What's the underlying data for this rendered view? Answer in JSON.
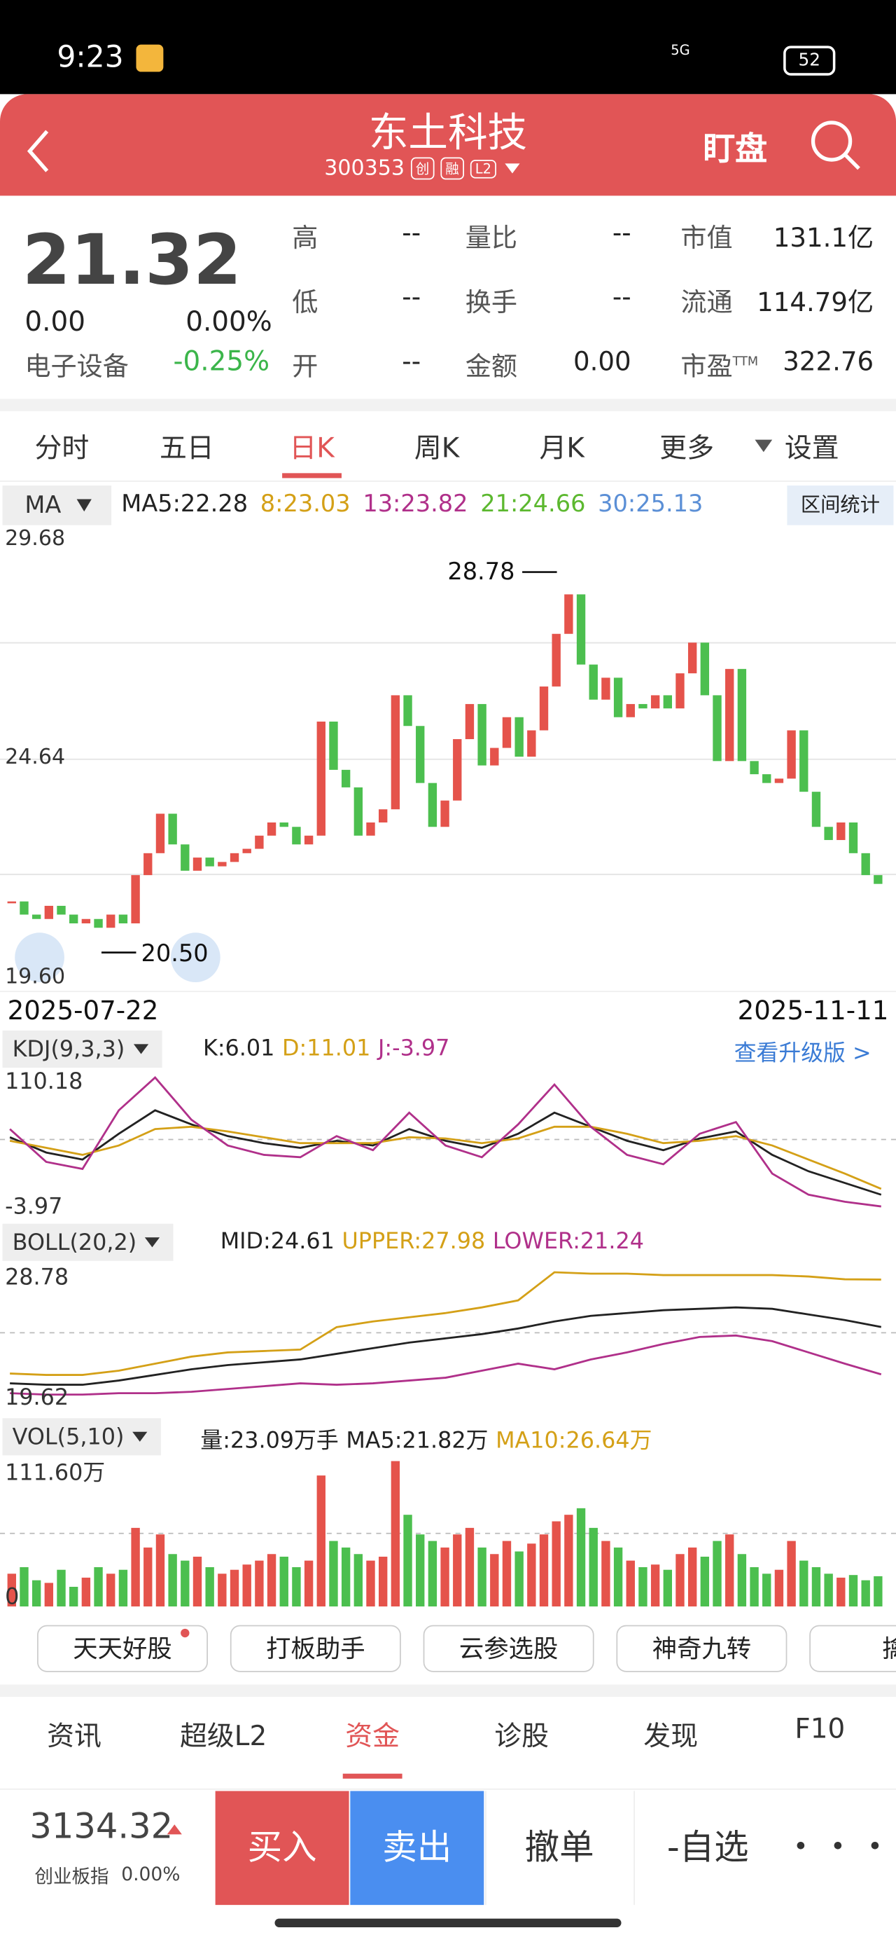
{
  "status": {
    "time": "9:23",
    "network": "5G",
    "battery": "52"
  },
  "header": {
    "title": "东土科技",
    "code": "300353",
    "badges": [
      "创",
      "融",
      "L2"
    ],
    "watch": "盯盘"
  },
  "quote": {
    "price": "21.32",
    "change": "0.00",
    "pct": "0.00%",
    "sector": "电子设备",
    "sector_pct": "-0.25%",
    "fields": [
      [
        {
          "label": "高",
          "value": "--"
        },
        {
          "label": "低",
          "value": "--"
        },
        {
          "label": "开",
          "value": "--"
        }
      ],
      [
        {
          "label": "量比",
          "value": "--"
        },
        {
          "label": "换手",
          "value": "--"
        },
        {
          "label": "金额",
          "value": "0.00"
        }
      ],
      [
        {
          "label": "市值",
          "value": "131.1亿"
        },
        {
          "label": "流通",
          "value": "114.79亿"
        },
        {
          "label": "市盈",
          "sup": "TTM",
          "value": "322.76"
        }
      ]
    ]
  },
  "tabs": [
    "分时",
    "五日",
    "日K",
    "周K",
    "月K",
    "更多",
    "设置"
  ],
  "ma": {
    "toggle": "MA",
    "items": [
      {
        "text": "MA5:22.28",
        "color": "#222222"
      },
      {
        "text": "8:23.03",
        "color": "#d4a017"
      },
      {
        "text": "13:23.82",
        "color": "#b0308a"
      },
      {
        "text": "21:24.66",
        "color": "#5cb82f"
      },
      {
        "text": "30:25.13",
        "color": "#5b8fd6"
      }
    ],
    "range_stats": "区间统计"
  },
  "kline": {
    "yticks": [
      {
        "value": 29.68,
        "label": "29.68"
      },
      {
        "value": 24.64,
        "label": "24.64"
      },
      {
        "value": 19.6,
        "label": "19.60"
      }
    ],
    "high_label": "28.78",
    "low_label": "20.50",
    "up_color": "#e5534b",
    "down_color": "#4cbf4f",
    "closes": [
      21.3,
      21.0,
      20.9,
      21.2,
      21.0,
      20.8,
      20.9,
      20.7,
      21.0,
      20.8,
      21.9,
      22.4,
      23.3,
      22.6,
      22.0,
      22.3,
      22.1,
      22.2,
      22.4,
      22.5,
      22.8,
      23.1,
      23.0,
      22.6,
      22.8,
      25.4,
      24.3,
      23.9,
      22.8,
      23.1,
      23.4,
      26.0,
      25.3,
      24.0,
      23.0,
      23.6,
      25.0,
      25.8,
      24.4,
      24.8,
      25.5,
      24.6,
      25.2,
      26.2,
      27.4,
      28.3,
      26.7,
      25.9,
      26.4,
      25.5,
      25.8,
      25.7,
      26.0,
      25.7,
      26.5,
      27.2,
      26.0,
      24.5,
      26.6,
      24.5,
      24.2,
      24.0,
      24.1,
      25.2,
      23.8,
      23.0,
      22.7,
      23.1,
      22.4,
      21.9,
      21.7
    ],
    "start_date": "2025-07-22",
    "end_date": "2025-11-11"
  },
  "kdj": {
    "name": "KDJ(9,3,3)",
    "items": [
      {
        "text": "K:6.01",
        "color": "#222222"
      },
      {
        "text": "D:11.01",
        "color": "#d4a017"
      },
      {
        "text": "J:-3.97",
        "color": "#b0308a"
      }
    ],
    "upgrade": "查看升级版 >",
    "yticks": [
      {
        "value": 110.18,
        "label": "110.18"
      },
      {
        "value": -3.97,
        "label": "-3.97"
      }
    ],
    "series": [
      {
        "color": "#222222",
        "values": [
          55,
          42,
          36,
          58,
          78,
          66,
          56,
          50,
          46,
          52,
          48,
          62,
          52,
          46,
          58,
          76,
          64,
          52,
          44,
          54,
          60,
          40,
          26,
          16,
          6
        ]
      },
      {
        "color": "#d4a017",
        "values": [
          52,
          46,
          40,
          48,
          62,
          64,
          60,
          55,
          50,
          50,
          50,
          55,
          54,
          50,
          54,
          64,
          64,
          58,
          50,
          52,
          56,
          48,
          36,
          24,
          11
        ]
      },
      {
        "color": "#b0308a",
        "values": [
          62,
          34,
          28,
          78,
          106,
          70,
          48,
          40,
          38,
          56,
          44,
          76,
          48,
          38,
          66,
          100,
          64,
          40,
          32,
          58,
          68,
          24,
          6,
          0,
          -4
        ]
      }
    ]
  },
  "boll": {
    "name": "BOLL(20,2)",
    "items": [
      {
        "text": "MID:24.61",
        "color": "#222222"
      },
      {
        "text": "UPPER:27.98",
        "color": "#d4a017"
      },
      {
        "text": "LOWER:21.24",
        "color": "#b0308a"
      }
    ],
    "yticks": [
      {
        "value": 28.78,
        "label": "28.78"
      },
      {
        "value": 19.62,
        "label": "19.62"
      }
    ],
    "series": [
      {
        "color": "#222222",
        "values": [
          20.6,
          20.5,
          20.5,
          20.8,
          21.2,
          21.6,
          21.9,
          22.1,
          22.3,
          22.7,
          23.1,
          23.5,
          23.8,
          24.1,
          24.5,
          25.0,
          25.4,
          25.6,
          25.8,
          25.9,
          26.0,
          25.9,
          25.5,
          25.1,
          24.61
        ]
      },
      {
        "color": "#d4a017",
        "values": [
          21.3,
          21.2,
          21.2,
          21.5,
          22.0,
          22.5,
          22.8,
          22.9,
          23.0,
          24.6,
          25.0,
          25.3,
          25.6,
          26.0,
          26.5,
          28.5,
          28.4,
          28.4,
          28.3,
          28.3,
          28.3,
          28.3,
          28.2,
          28.0,
          27.98
        ]
      },
      {
        "color": "#b0308a",
        "values": [
          19.9,
          19.8,
          19.8,
          19.9,
          19.9,
          20.0,
          20.2,
          20.4,
          20.6,
          20.5,
          20.6,
          20.8,
          21.0,
          21.5,
          22.0,
          21.6,
          22.3,
          22.8,
          23.4,
          23.9,
          24.0,
          23.6,
          22.8,
          22.0,
          21.24
        ]
      }
    ]
  },
  "vol": {
    "name": "VOL(5,10)",
    "items": [
      {
        "text": "量:23.09万手",
        "color": "#222222"
      },
      {
        "text": "MA5:21.82万",
        "color": "#222222"
      },
      {
        "text": "MA10:26.64万",
        "color": "#d4a017"
      }
    ],
    "yticks": [
      {
        "value": 111.6,
        "label": "111.60万"
      },
      0
    ],
    "values": [
      25,
      30,
      20,
      18,
      28,
      15,
      22,
      30,
      25,
      28,
      60,
      45,
      55,
      40,
      35,
      38,
      30,
      25,
      28,
      32,
      35,
      40,
      38,
      30,
      35,
      100,
      50,
      45,
      40,
      35,
      38,
      111,
      70,
      55,
      50,
      45,
      55,
      60,
      45,
      40,
      50,
      42,
      48,
      55,
      65,
      70,
      75,
      60,
      50,
      45,
      35,
      30,
      32,
      28,
      40,
      45,
      38,
      50,
      55,
      40,
      30,
      25,
      28,
      50,
      35,
      30,
      25,
      22,
      24,
      20,
      23.09
    ]
  },
  "tools": [
    "天天好股",
    "打板助手",
    "云参选股",
    "神奇九转",
    "擒"
  ],
  "nav": [
    "资讯",
    "超级L2",
    "资金",
    "诊股",
    "发现",
    "F10"
  ],
  "bottom": {
    "index_value": "3134.32",
    "index_name": "创业板指",
    "index_pct": "0.00%",
    "buttons": [
      "买入",
      "卖出",
      "撤单",
      "-自选"
    ]
  }
}
